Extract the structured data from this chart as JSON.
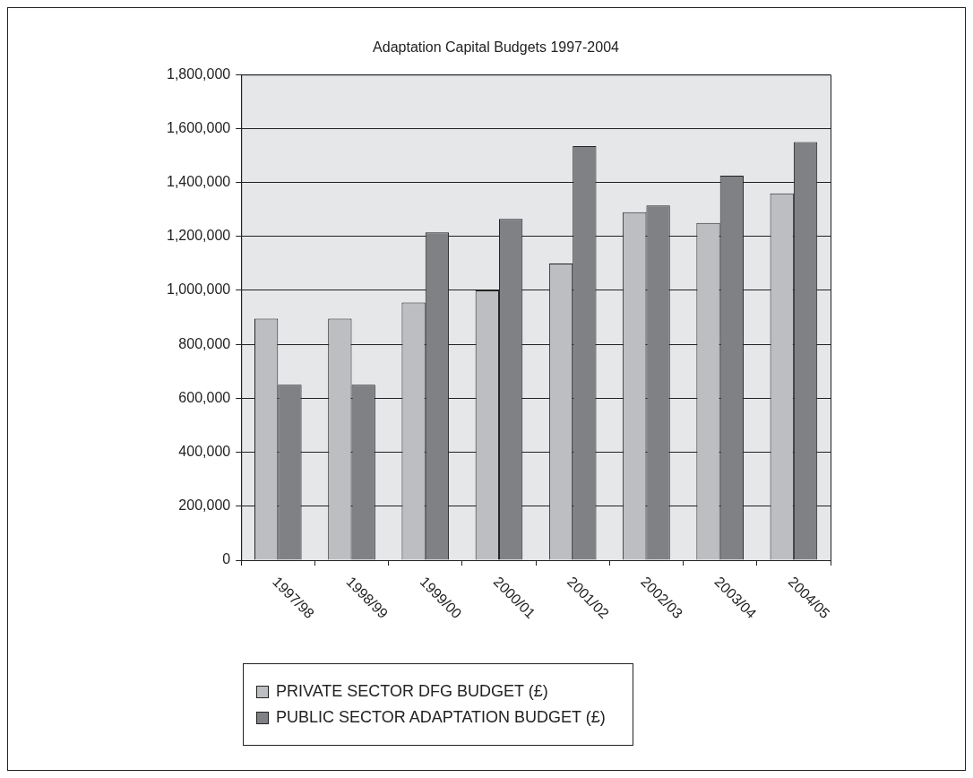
{
  "chart_data": {
    "type": "bar",
    "title": "Adaptation Capital Budgets 1997-2004",
    "categories": [
      "1997/98",
      "1998/99",
      "1999/00",
      "2000/01",
      "2001/02",
      "2002/03",
      "2003/04",
      "2004/05"
    ],
    "series": [
      {
        "name": "PRIVATE SECTOR DFG BUDGET (£)",
        "color": "#bdbec2",
        "values": [
          895000,
          895000,
          955000,
          1000000,
          1100000,
          1290000,
          1250000,
          1360000
        ]
      },
      {
        "name": "PUBLIC SECTOR ADAPTATION BUDGET (£)",
        "color": "#808185",
        "values": [
          650000,
          650000,
          1215000,
          1265000,
          1535000,
          1315000,
          1425000,
          1550000
        ]
      }
    ],
    "ylim": [
      0,
      1800000
    ],
    "yticks": [
      0,
      {
        "value": 200000,
        "label": "200,000"
      },
      {
        "value": 400000,
        "label": "400,000"
      },
      {
        "value": 600000,
        "label": "600,000"
      },
      {
        "value": 800000,
        "label": "800,000"
      },
      {
        "value": 1000000,
        "label": "1,000,000"
      },
      {
        "value": 1200000,
        "label": "1,200,000"
      },
      {
        "value": 1400000,
        "label": "1,400,000"
      },
      {
        "value": 1600000,
        "label": "1,600,000"
      },
      {
        "value": 1800000,
        "label": "1,800,000"
      }
    ],
    "grid": "y",
    "legend": "bottom"
  }
}
